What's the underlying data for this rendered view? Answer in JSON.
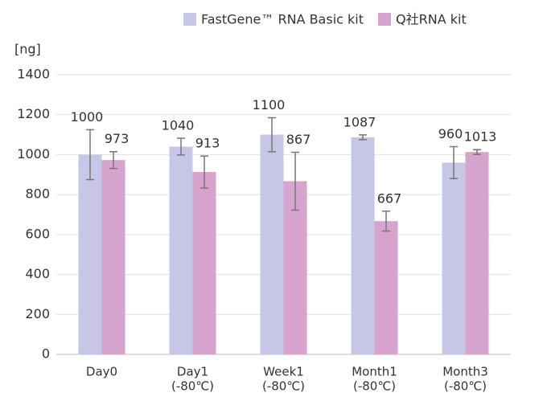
{
  "chart_data": {
    "type": "bar",
    "y_label": "[ng]",
    "categories": [
      [
        "Day0"
      ],
      [
        "Day1",
        "(-80℃)"
      ],
      [
        "Week1",
        "(-80℃)"
      ],
      [
        "Month1",
        "(-80℃)"
      ],
      [
        "Month3",
        "(-80℃)"
      ]
    ],
    "series": [
      {
        "name": "FastGene™ RNA Basic kit",
        "color": "#c6c6e6",
        "values": [
          1000,
          1040,
          1100,
          1087,
          960
        ],
        "errors": [
          125,
          42,
          85,
          12,
          80
        ]
      },
      {
        "name": "Q社RNA kit",
        "color": "#d6a4cd",
        "values": [
          973,
          913,
          867,
          667,
          1013
        ],
        "errors": [
          42,
          80,
          145,
          50,
          12
        ]
      }
    ],
    "ylim": [
      0,
      1400
    ],
    "yticks": [
      0,
      200,
      400,
      600,
      800,
      1000,
      1200,
      1400
    ],
    "grid": true
  }
}
